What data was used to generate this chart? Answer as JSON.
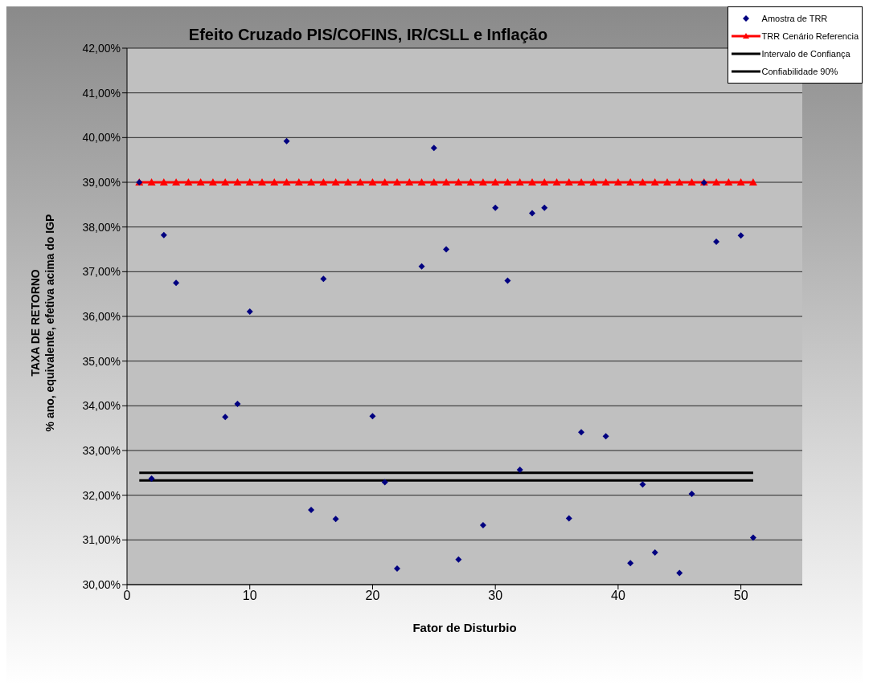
{
  "chart_data": {
    "type": "scatter",
    "title": "Efeito Cruzado PIS/COFINS, IR/CSLL e Inflação",
    "xlabel": "Fator de Disturbio",
    "ylabel": "TAXA DE RETORNO\n% ano, equivalente, efetiva acima do IGP",
    "xlim": [
      0,
      55
    ],
    "xticks": [
      0,
      10,
      20,
      30,
      40,
      50
    ],
    "ylim": [
      30,
      42
    ],
    "yticks": [
      {
        "value": 30,
        "label": "30,00%"
      },
      {
        "value": 31,
        "label": "31,00%"
      },
      {
        "value": 32,
        "label": "32,00%"
      },
      {
        "value": 33,
        "label": "33,00%"
      },
      {
        "value": 34,
        "label": "34,00%"
      },
      {
        "value": 35,
        "label": "35,00%"
      },
      {
        "value": 36,
        "label": "36,00%"
      },
      {
        "value": 37,
        "label": "37,00%"
      },
      {
        "value": 38,
        "label": "38,00%"
      },
      {
        "value": 39,
        "label": "39,00%"
      },
      {
        "value": 40,
        "label": "40,00%"
      },
      {
        "value": 41,
        "label": "41,00%"
      },
      {
        "value": 42,
        "label": "42,00%"
      }
    ],
    "grid": "y",
    "legend": "top right",
    "series": [
      {
        "name": "Amostra de TRR",
        "color": "#000080",
        "marker": "diamond",
        "x": [
          1,
          2,
          3,
          4,
          8,
          9,
          10,
          13,
          15,
          16,
          17,
          20,
          21,
          22,
          24,
          25,
          26,
          27,
          29,
          30,
          31,
          32,
          33,
          34,
          36,
          37,
          39,
          41,
          42,
          43,
          45,
          46,
          47,
          48,
          50,
          51
        ],
        "values": [
          39.0,
          32.37,
          37.82,
          36.75,
          33.75,
          34.04,
          36.11,
          39.92,
          31.67,
          36.84,
          31.47,
          33.77,
          32.29,
          30.36,
          37.12,
          39.77,
          37.5,
          30.56,
          31.33,
          38.43,
          36.8,
          32.57,
          38.31,
          38.43,
          31.48,
          33.41,
          33.32,
          30.48,
          32.24,
          30.72,
          30.26,
          32.03,
          38.99,
          37.67,
          37.81,
          31.05
        ]
      },
      {
        "name": "TRR Cenário Referencia",
        "type": "line",
        "color": "#ff0000",
        "marker": "triangle",
        "line_style": "solid",
        "x": [
          1,
          2,
          3,
          4,
          5,
          6,
          7,
          8,
          9,
          10,
          11,
          12,
          13,
          14,
          15,
          16,
          17,
          18,
          19,
          20,
          21,
          22,
          23,
          24,
          25,
          26,
          27,
          28,
          29,
          30,
          31,
          32,
          33,
          34,
          35,
          36,
          37,
          38,
          39,
          40,
          41,
          42,
          43,
          44,
          45,
          46,
          47,
          48,
          49,
          50,
          51
        ],
        "values": [
          39,
          39,
          39,
          39,
          39,
          39,
          39,
          39,
          39,
          39,
          39,
          39,
          39,
          39,
          39,
          39,
          39,
          39,
          39,
          39,
          39,
          39,
          39,
          39,
          39,
          39,
          39,
          39,
          39,
          39,
          39,
          39,
          39,
          39,
          39,
          39,
          39,
          39,
          39,
          39,
          39,
          39,
          39,
          39,
          39,
          39,
          39,
          39,
          39,
          39,
          39
        ]
      },
      {
        "name": "Intervalo de Confiança",
        "type": "line",
        "color": "#000000",
        "marker": "none",
        "line_style": "solid",
        "x": [
          1,
          51
        ],
        "values": [
          32.5,
          32.5
        ]
      },
      {
        "name": "Confiabilidade 90%",
        "type": "line",
        "color": "#000000",
        "marker": "none",
        "line_style": "solid",
        "x": [
          1,
          51
        ],
        "values": [
          32.33,
          32.33
        ]
      }
    ]
  }
}
